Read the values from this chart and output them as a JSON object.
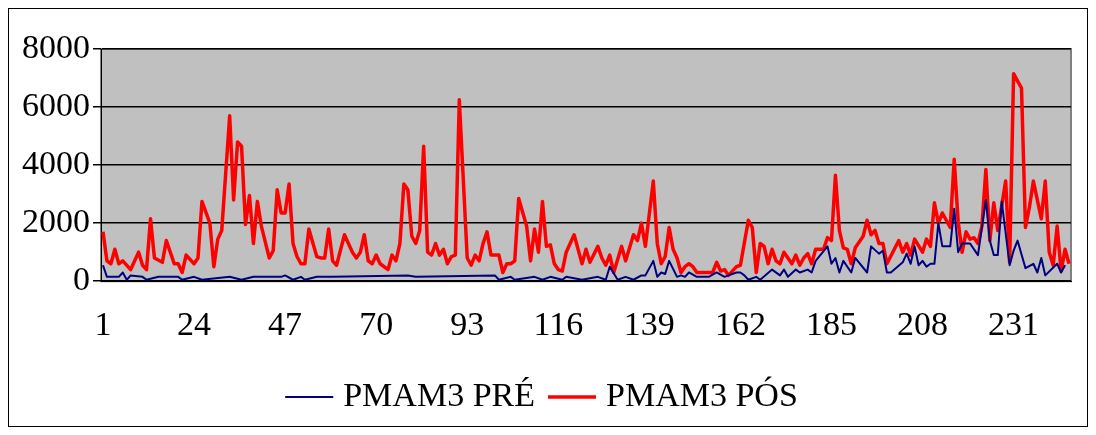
{
  "chart_data": {
    "type": "line",
    "xlim": [
      0.5,
      245.5
    ],
    "xticks": [
      1,
      24,
      47,
      70,
      93,
      116,
      139,
      162,
      185,
      208,
      231
    ],
    "ylim": [
      0,
      8000
    ],
    "yticks": [
      0,
      2000,
      4000,
      6000,
      8000
    ],
    "grid": "y",
    "legend": "bottom",
    "marker": "none",
    "line_style": "solid",
    "series": [
      {
        "name": "PMAM3 PRÉ",
        "color": "#000080",
        "x": [
          1,
          2,
          5,
          6,
          7,
          8,
          11,
          12,
          15,
          20,
          21,
          24,
          26,
          33,
          36,
          39,
          46,
          47,
          49,
          51,
          52,
          55,
          59,
          78,
          80,
          100,
          101,
          104,
          105,
          110,
          112,
          114,
          117,
          118,
          122,
          126,
          128,
          129,
          131,
          133,
          135,
          137,
          138,
          140,
          141,
          142,
          143,
          144,
          146,
          147,
          148,
          149,
          151,
          154,
          156,
          158,
          159,
          161,
          162,
          163,
          164,
          166,
          167,
          170,
          172,
          173,
          174,
          176,
          177,
          179,
          180,
          181,
          184,
          185,
          186,
          187,
          188,
          190,
          191,
          194,
          195,
          197,
          198,
          199,
          200,
          203,
          204,
          205,
          206,
          207,
          208,
          209,
          210,
          211,
          212,
          213,
          215,
          216,
          217,
          218,
          220,
          222,
          224,
          225,
          226,
          227,
          228,
          230,
          231,
          232,
          234,
          236,
          237,
          238,
          239,
          242,
          243,
          244
        ],
        "values": [
          550,
          150,
          150,
          300,
          50,
          200,
          150,
          50,
          150,
          150,
          50,
          150,
          50,
          150,
          50,
          150,
          150,
          200,
          50,
          150,
          50,
          150,
          150,
          200,
          150,
          200,
          50,
          150,
          50,
          150,
          50,
          150,
          50,
          150,
          50,
          150,
          50,
          500,
          50,
          150,
          50,
          200,
          200,
          700,
          150,
          300,
          250,
          700,
          150,
          200,
          150,
          300,
          150,
          150,
          300,
          150,
          200,
          300,
          300,
          200,
          50,
          150,
          50,
          400,
          200,
          400,
          150,
          400,
          300,
          400,
          300,
          700,
          1200,
          600,
          800,
          300,
          700,
          300,
          800,
          300,
          1200,
          950,
          1050,
          300,
          300,
          650,
          950,
          600,
          1200,
          550,
          700,
          500,
          600,
          600,
          2000,
          1200,
          1200,
          2500,
          1000,
          1300,
          1300,
          900,
          2800,
          1400,
          900,
          900,
          2750,
          550,
          1050,
          1400,
          450,
          600,
          300,
          800,
          200,
          600,
          300,
          550
        ]
      },
      {
        "name": "PMAM3 PÓS",
        "color": "#ff0000",
        "x": [
          1,
          2,
          3,
          4,
          5,
          6,
          8,
          10,
          11,
          12,
          13,
          14,
          16,
          17,
          19,
          20,
          21,
          22,
          24,
          25,
          26,
          28,
          29,
          30,
          31,
          33,
          34,
          35,
          36,
          37,
          38,
          39,
          40,
          41,
          43,
          44,
          45,
          46,
          47,
          48,
          49,
          50,
          51,
          52,
          53,
          55,
          56,
          57,
          58,
          59,
          60,
          62,
          64,
          65,
          66,
          67,
          68,
          69,
          70,
          71,
          73,
          74,
          75,
          76,
          77,
          78,
          79,
          80,
          81,
          82,
          83,
          84,
          85,
          86,
          87,
          88,
          89,
          90,
          91,
          93,
          94,
          95,
          96,
          97,
          98,
          99,
          101,
          102,
          103,
          104,
          105,
          106,
          108,
          109,
          110,
          111,
          112,
          113,
          114,
          115,
          116,
          117,
          118,
          120,
          122,
          123,
          124,
          126,
          127,
          128,
          129,
          130,
          132,
          133,
          135,
          136,
          137,
          138,
          140,
          141,
          142,
          143,
          144,
          145,
          146,
          147,
          148,
          149,
          150,
          151,
          155,
          156,
          157,
          158,
          159,
          161,
          162,
          164,
          165,
          166,
          167,
          168,
          169,
          170,
          171,
          172,
          173,
          175,
          176,
          177,
          178,
          179,
          180,
          181,
          183,
          184,
          185,
          186,
          187,
          188,
          189,
          190,
          191,
          193,
          194,
          195,
          196,
          197,
          198,
          199,
          202,
          203,
          204,
          205,
          206,
          208,
          209,
          210,
          211,
          212,
          213,
          215,
          216,
          217,
          218,
          219,
          220,
          221,
          222,
          223,
          224,
          225,
          226,
          227,
          229,
          230,
          231,
          233,
          234,
          235,
          236,
          238,
          239,
          240,
          241,
          242,
          243,
          244,
          245
        ],
        "values": [
          1700,
          700,
          600,
          1100,
          600,
          700,
          400,
          1000,
          550,
          400,
          2150,
          800,
          650,
          1400,
          600,
          600,
          300,
          900,
          600,
          800,
          2750,
          2000,
          500,
          1450,
          1750,
          5700,
          2800,
          4800,
          4650,
          1950,
          2950,
          1300,
          2750,
          1900,
          800,
          1050,
          3150,
          2350,
          2350,
          3350,
          1300,
          850,
          600,
          600,
          1800,
          850,
          800,
          800,
          1800,
          700,
          550,
          1600,
          1000,
          800,
          1000,
          1600,
          700,
          600,
          900,
          600,
          400,
          900,
          700,
          1300,
          3350,
          3150,
          1550,
          1300,
          1750,
          4650,
          1000,
          900,
          1300,
          900,
          1100,
          600,
          850,
          900,
          6250,
          800,
          550,
          900,
          700,
          1300,
          1700,
          900,
          900,
          300,
          600,
          600,
          700,
          2850,
          1900,
          700,
          1800,
          1000,
          2750,
          1200,
          1250,
          600,
          400,
          350,
          1000,
          1600,
          600,
          1100,
          650,
          1200,
          800,
          550,
          900,
          300,
          1200,
          700,
          1600,
          1400,
          2000,
          1200,
          3450,
          1300,
          600,
          850,
          1850,
          1100,
          800,
          300,
          500,
          600,
          500,
          300,
          300,
          650,
          350,
          400,
          200,
          500,
          550,
          2100,
          1850,
          300,
          1300,
          1200,
          600,
          1100,
          700,
          600,
          1000,
          600,
          900,
          550,
          800,
          950,
          600,
          1100,
          1100,
          1500,
          1400,
          3650,
          1750,
          1150,
          1100,
          600,
          1150,
          1550,
          2100,
          1600,
          1750,
          1300,
          1300,
          600,
          1400,
          1000,
          1300,
          900,
          1450,
          1000,
          1450,
          1200,
          2700,
          2000,
          2350,
          1850,
          4200,
          2050,
          1000,
          1700,
          1450,
          1500,
          1300,
          1900,
          3850,
          1400,
          2700,
          1750,
          3450,
          650,
          7150,
          6650,
          1850,
          2550,
          3450,
          2150,
          3450,
          1000,
          550,
          1900,
          350,
          1100,
          600
        ]
      }
    ]
  }
}
